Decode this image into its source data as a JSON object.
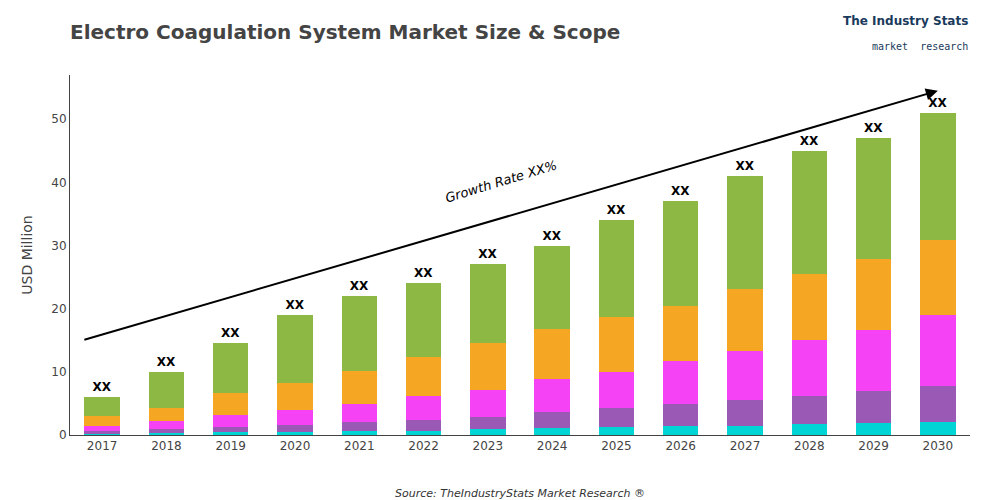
{
  "chart_data": {
    "type": "bar",
    "stacked": true,
    "title": "Electro Coagulation System Market Size & Scope",
    "y_label": "USD Million",
    "categories": [
      "2017",
      "2018",
      "2019",
      "2020",
      "2021",
      "2022",
      "2023",
      "2024",
      "2025",
      "2026",
      "2027",
      "2028",
      "2029",
      "2030"
    ],
    "series": [
      {
        "color": "#00d4d4",
        "values": [
          0.2,
          0.3,
          0.4,
          0.5,
          0.6,
          0.7,
          0.9,
          1.1,
          1.2,
          1.4,
          1.5,
          1.7,
          1.9,
          2.0
        ]
      },
      {
        "color": "#9b59b6",
        "values": [
          0.4,
          0.6,
          0.9,
          1.1,
          1.4,
          1.7,
          2.0,
          2.5,
          3.0,
          3.5,
          4.0,
          4.5,
          5.0,
          5.8
        ]
      },
      {
        "color": "#f542f5",
        "values": [
          0.9,
          1.3,
          1.9,
          2.4,
          2.9,
          3.7,
          4.3,
          5.2,
          5.8,
          6.8,
          7.8,
          8.8,
          9.8,
          11.2
        ]
      },
      {
        "color": "#f5a623",
        "values": [
          1.5,
          2.1,
          3.5,
          4.2,
          5.3,
          6.3,
          7.3,
          8.0,
          8.7,
          8.8,
          9.8,
          10.5,
          11.2,
          11.8
        ]
      },
      {
        "color": "#8db843",
        "values": [
          3.0,
          5.7,
          7.8,
          10.8,
          11.8,
          11.6,
          12.5,
          13.2,
          15.3,
          16.5,
          17.9,
          19.5,
          19.1,
          20.2
        ]
      }
    ],
    "ylim": [
      0,
      57
    ],
    "yticks": [
      0,
      10,
      20,
      30,
      40,
      50
    ],
    "grid": false,
    "annotations": [
      {
        "text": "XX"
      },
      {
        "text": "Growth Rate XX%"
      },
      {
        "text": "Source: TheIndustryStats Market Research ®"
      },
      {
        "text": "The Industry Stats",
        "color": "#1a3a5c"
      },
      {
        "text": "market  research",
        "color": "#1a3a5c"
      }
    ]
  }
}
